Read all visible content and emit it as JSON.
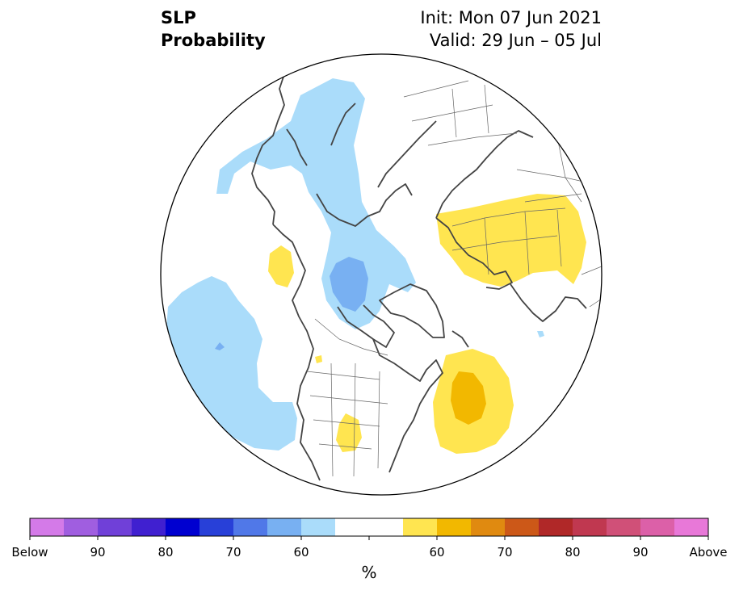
{
  "title": {
    "line1": "SLP",
    "line2": "Probability",
    "init": "Init: Mon 07 Jun 2021",
    "valid": "Valid: 29 Jun – 05 Jul"
  },
  "colorbar": {
    "unit": "%",
    "below_colors": [
      "#d47ae8",
      "#a05ee0",
      "#7040d8",
      "#4020d0",
      "#0000d0",
      "#2840d8",
      "#5078e8",
      "#78b0f2",
      "#aadcfa"
    ],
    "neutral_color": "#ffffff",
    "above_colors": [
      "#ffe550",
      "#f2b800",
      "#e08a10",
      "#cc5818",
      "#b02828",
      "#c03850",
      "#d05078",
      "#dc60a8",
      "#e878d8"
    ],
    "tick_labels": [
      "Below",
      "90",
      "80",
      "70",
      "60",
      "60",
      "70",
      "80",
      "90",
      "Above"
    ]
  },
  "map": {
    "projection": "north-polar-stereographic",
    "coastline_color": "#444444",
    "border_color": "#666666"
  }
}
